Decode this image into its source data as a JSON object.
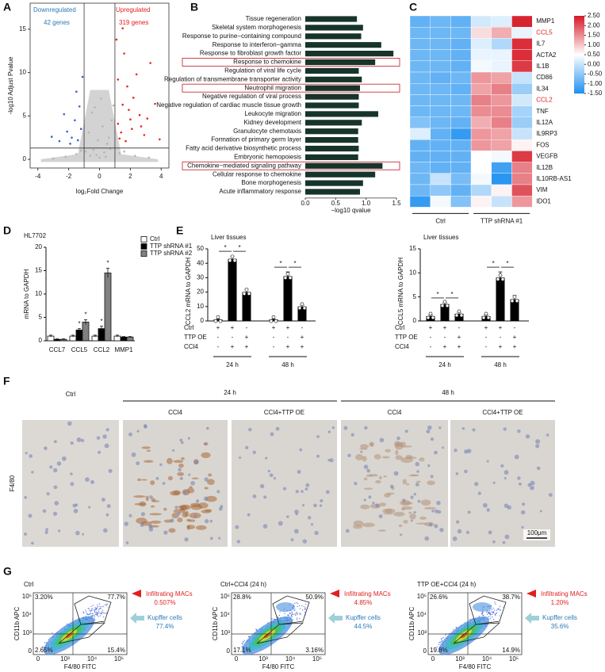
{
  "panel_labels": [
    "A",
    "B",
    "C",
    "D",
    "E",
    "F",
    "G"
  ],
  "chart_data": [
    {
      "type": "scatter",
      "xlabel": "log₂Fold Change",
      "ylabel": "-log10 Adjust Pvalue",
      "xlim": [
        -4.5,
        4.5
      ],
      "ylim": [
        -1,
        18
      ],
      "xticks": [
        -4,
        -2,
        0,
        2,
        4
      ],
      "yticks": [
        0,
        5,
        10,
        15
      ],
      "vlines": [
        -1,
        1
      ],
      "hlines": [
        1.3
      ],
      "annotations": [
        {
          "text": "Downregulated",
          "color": "#2a7ab8"
        },
        {
          "text": "42 genes",
          "color": "#2a7ab8"
        },
        {
          "text": "Upregulated",
          "color": "#e0201e"
        },
        {
          "text": "319 genes",
          "color": "#e0201e"
        }
      ],
      "series": [
        {
          "color": "#b4b4b4",
          "x": [
            0,
            0.3,
            -0.4,
            0.6,
            -0.7,
            0.8,
            -0.2,
            0.5,
            -0.9,
            0.2,
            -0.5,
            0.9,
            -1.5,
            1.6,
            -2.2,
            2.3,
            -0.1,
            0.4,
            -0.6,
            0.7,
            -1.2,
            1.3,
            -3,
            3.2,
            0.1,
            -0.3
          ],
          "values": [
            0.2,
            0.8,
            1.1,
            2.5,
            3.1,
            4.5,
            0.5,
            1.8,
            0.9,
            3.8,
            5.4,
            6.2,
            0.6,
            0.9,
            0.3,
            0.4,
            2.2,
            0.3,
            0.4,
            1.2,
            1,
            0.7,
            0.1,
            0.2,
            7,
            6
          ]
        },
        {
          "color": "#3a5fcd",
          "x": [
            -1.6,
            -2.1,
            -1.3,
            -1.8,
            -2.6,
            -1.5,
            -1.2,
            -2.3,
            -1.1,
            -1.4,
            -1.9,
            -3.1
          ],
          "values": [
            4.5,
            3.2,
            6.1,
            2.5,
            2.1,
            7.8,
            3.5,
            5.2,
            9.5,
            2.2,
            1.8,
            2.6
          ]
        },
        {
          "color": "#e8261f",
          "x": [
            1.2,
            1.5,
            2.1,
            1.8,
            2.6,
            3.1,
            1.3,
            1.6,
            2.4,
            3.6,
            1.1,
            2.9,
            1.9,
            1.4,
            2.2,
            3.3,
            1.7,
            2.7,
            1.2,
            2,
            3.9,
            1.5
          ],
          "values": [
            4.1,
            6.3,
            3.5,
            8.4,
            5.1,
            4.7,
            2.4,
            12.2,
            9.8,
            6.4,
            13.8,
            2.8,
            5.7,
            3.1,
            7.1,
            11.1,
            2.1,
            3.8,
            9.2,
            4.6,
            2.3,
            15.1
          ]
        }
      ]
    },
    {
      "type": "hbar",
      "xlabel": "−log10 qvalue",
      "color": "#17342b",
      "highlight_color": "#c8323c",
      "categories": [
        "Tissue regeneration",
        "Skeletal system morphogenesis",
        "Response to purine−containing compound",
        "Response to interferon−gamma",
        "Response to fibroblast growth factor",
        "Response to chemokine",
        "Regulation of viral life cycle",
        "Regulation of transmembrane transporter activity",
        "Neutrophil migration",
        "Negative regulation of viral process",
        "Negative regulation of cardiac muscle tissue growth",
        "Leukocyte migration",
        "Kidney development",
        "Granulocyte chemotaxis",
        "Formation of primary germ layer",
        "Fatty acid derivative biosynthetic process",
        "Embryonic hemopoiesis",
        "Chemokine−mediated signaling pathway",
        "Cellular response to chemokine",
        "Bone morphogenesis",
        "Acute inflammatory response"
      ],
      "values": [
        0.85,
        0.95,
        0.92,
        1.25,
        1.45,
        1.15,
        0.88,
        0.93,
        0.9,
        0.88,
        0.88,
        1.2,
        0.93,
        0.87,
        0.87,
        0.88,
        0.87,
        1.27,
        1.15,
        0.95,
        0.9
      ],
      "highlighted": [
        5,
        8,
        17
      ],
      "xlim": [
        0,
        1.5
      ],
      "xticks": [
        {
          "value": 0,
          "label": "0.0"
        },
        0.5,
        {
          "value": 1,
          "label": "1.0"
        },
        1.5
      ]
    },
    {
      "type": "heatmap",
      "rows": [
        "MMP1",
        "CCL5",
        "IL7",
        "ACTA2",
        "IL1B",
        "CD86",
        "IL34",
        "CCL2",
        "TNF",
        "IL12A",
        "IL9RP3",
        "FOS",
        "VEGFB",
        "IL12B",
        "IL10RB-AS1",
        "VIM",
        "IDO1"
      ],
      "highlight_rows": [
        1,
        7
      ],
      "highlight_color": "#e0201e",
      "values": [
        [
          -0.9,
          -0.8,
          -0.9,
          0.1,
          0.2,
          2.4
        ],
        [
          -0.8,
          -0.8,
          -0.8,
          0.8,
          1.2,
          0.3
        ],
        [
          -0.8,
          -0.8,
          -0.9,
          0.2,
          -0.2,
          2.3
        ],
        [
          -0.8,
          -0.8,
          -0.9,
          0.3,
          0.3,
          2.3
        ],
        [
          -0.8,
          -0.8,
          -0.9,
          0.4,
          0.3,
          2.2
        ],
        [
          -0.8,
          -0.9,
          -0.8,
          1.4,
          1.3,
          0
        ],
        [
          -0.8,
          -0.8,
          -0.9,
          1.3,
          1.6,
          -0.4
        ],
        [
          -0.8,
          -0.8,
          -0.8,
          1.6,
          1.4,
          0.1
        ],
        [
          -0.8,
          -0.8,
          -0.8,
          1.5,
          1.5,
          -0.3
        ],
        [
          -0.6,
          -0.8,
          -0.9,
          1.2,
          1.6,
          -0.4
        ],
        [
          0.2,
          -0.9,
          -1.3,
          1.4,
          1.3,
          0
        ],
        [
          -0.9,
          -0.9,
          -0.9,
          1.4,
          1.3,
          0.6
        ],
        [
          -0.9,
          -0.9,
          -0.9,
          0.5,
          0.4,
          2.2
        ],
        [
          -0.8,
          -0.9,
          -0.9,
          0.5,
          -1.2,
          1.6
        ],
        [
          -0.8,
          0,
          -0.7,
          0.4,
          -1.4,
          1.6
        ],
        [
          -0.8,
          -0.5,
          -0.9,
          -0.2,
          0.6,
          2
        ],
        [
          -1.3,
          0.4,
          -0.6,
          0.6,
          0,
          1.4
        ]
      ],
      "clim": [
        -1.5,
        2.5
      ],
      "cticks": [
        {
          "value": 2.5,
          "label": "2.50"
        },
        {
          "value": 2,
          "label": "2.00"
        },
        {
          "value": 1.5,
          "label": "1.50"
        },
        {
          "value": 1,
          "label": "1.00"
        },
        {
          "value": 0.5,
          "label": "0.50"
        },
        {
          "value": 0,
          "label": "0.00"
        },
        {
          "value": -0.5,
          "label": "-0.50"
        },
        {
          "value": -1,
          "label": "-1.00"
        },
        {
          "value": -1.5,
          "label": "-1.50"
        }
      ],
      "groups": [
        {
          "label": "Ctrl",
          "columns": 3
        },
        {
          "label": "TTP shRNA #1",
          "columns": 3
        }
      ]
    },
    {
      "type": "grouped_bar",
      "title": "HL7702",
      "ylabel": "mRNA to GAPDH",
      "categories": [
        "CCL7",
        "CCL5",
        "CCL2",
        "MMP1"
      ],
      "ylim": [
        0,
        20
      ],
      "yticks": [
        0,
        5,
        10,
        15,
        20
      ],
      "series": [
        {
          "name": "Ctrl",
          "color": "#ffffff",
          "values": [
            1,
            1,
            1,
            1
          ],
          "errors": [
            0.2,
            0.2,
            0.2,
            0.2
          ],
          "significance": [
            null,
            null,
            null,
            null
          ]
        },
        {
          "name": "TTP shRNA #1",
          "color": "#000000",
          "values": [
            0.3,
            2.3,
            2.6,
            0.8
          ],
          "errors": [
            0.1,
            0.3,
            0.5,
            0.1
          ],
          "significance": [
            null,
            "*",
            "*",
            null
          ]
        },
        {
          "name": "TTP shRNA #2",
          "color": "#808080",
          "values": [
            0.3,
            4,
            14.5,
            0.8
          ],
          "errors": [
            0.1,
            0.5,
            1,
            0.1
          ],
          "significance": [
            null,
            "*",
            "*",
            null
          ]
        }
      ]
    },
    {
      "type": "bar",
      "title": "Liver tissues",
      "ylabel": "CCL2 mRNA to GAPDH",
      "ylim": [
        0,
        50
      ],
      "yticks": [
        0,
        10,
        20,
        30,
        40,
        50
      ],
      "values": [
        1,
        43,
        20,
        1,
        31,
        10
      ],
      "errors": [
        0.3,
        2,
        2,
        0.3,
        3,
        1
      ],
      "color": "#000000",
      "conditions": [
        {
          "name": "Ctrl",
          "signs": [
            "+",
            "+",
            "-",
            "+",
            "+",
            "-"
          ]
        },
        {
          "name": "TTP OE",
          "signs": [
            "-",
            "-",
            "+",
            "-",
            "-",
            "+"
          ]
        },
        {
          "name": "CCl4",
          "signs": [
            "-",
            "+",
            "+",
            "-",
            "+",
            "+"
          ]
        }
      ],
      "groups": [
        "24 h",
        "48 h"
      ],
      "significance": [
        {
          "between": [
            0,
            1
          ],
          "label": "*"
        },
        {
          "between": [
            1,
            2
          ],
          "label": "*"
        },
        {
          "between": [
            3,
            4
          ],
          "label": "*"
        },
        {
          "between": [
            4,
            5
          ],
          "label": "*"
        }
      ]
    },
    {
      "type": "bar",
      "title": "Liver tissues",
      "ylabel": "CCL5 mRNA to GAPDH",
      "ylim": [
        0,
        15
      ],
      "yticks": [
        0,
        5,
        10,
        15
      ],
      "values": [
        1,
        3.5,
        1.5,
        1,
        9,
        4.5
      ],
      "errors": [
        0.2,
        0.3,
        0.3,
        0.2,
        1.2,
        0.8
      ],
      "color": "#000000",
      "conditions": [
        {
          "name": "Ctrl",
          "signs": [
            "+",
            "+",
            "-",
            "+",
            "+",
            "-"
          ]
        },
        {
          "name": "TTP OE",
          "signs": [
            "-",
            "-",
            "+",
            "-",
            "-",
            "+"
          ]
        },
        {
          "name": "CCl4",
          "signs": [
            "-",
            "+",
            "+",
            "-",
            "+",
            "+"
          ]
        }
      ],
      "groups": [
        "24 h",
        "48 h"
      ],
      "significance": [
        {
          "between": [
            0,
            1
          ],
          "label": "*"
        },
        {
          "between": [
            1,
            2
          ],
          "label": "*"
        },
        {
          "between": [
            3,
            4
          ],
          "label": "*"
        },
        {
          "between": [
            4,
            5
          ],
          "label": "*"
        }
      ]
    }
  ],
  "micrographs": {
    "row_label": "F4/80",
    "time_groups": [
      "24 h",
      "48 h"
    ],
    "columns": [
      "Ctrl",
      "CCl4",
      "CCl4+TTP OE",
      "CCl4",
      "CCl4+TTP OE"
    ],
    "scale_bar": "100μm"
  },
  "flow": {
    "ylabel": "CD11b APC",
    "xlabel": "F4/80 FITC",
    "infiltrating_label": "Infiltrating MACs",
    "kupffer_label": "Kupffer cells",
    "ticks": [
      "0",
      "10³",
      "10⁴",
      "10⁵"
    ],
    "plots": [
      {
        "title": "Ctrl",
        "quadrants": [
          "3.20%",
          "77.7%",
          "2.65%",
          "15.4%"
        ],
        "infiltrating": "0.507%",
        "kupffer": "77.4%"
      },
      {
        "title": "Ctrl+CCl4 (24 h)",
        "quadrants": [
          "28.8%",
          "50.9%",
          "17.1%",
          "3.16%"
        ],
        "infiltrating": "4.85%",
        "kupffer": "44.5%"
      },
      {
        "title": "TTP OE+CCl4 (24 h)",
        "quadrants": [
          "26.6%",
          "38.7%",
          "19.8%",
          "14.9%"
        ],
        "infiltrating": "1.20%",
        "kupffer": "35.6%"
      }
    ]
  }
}
